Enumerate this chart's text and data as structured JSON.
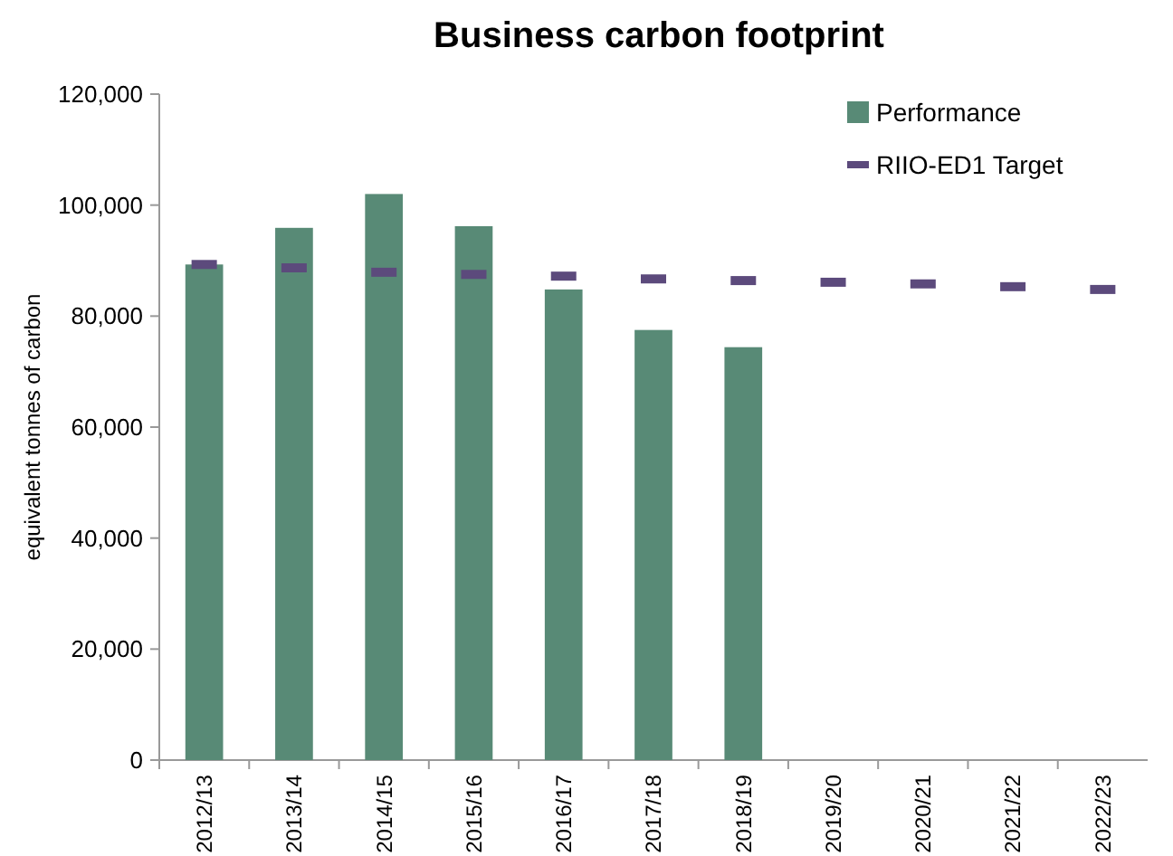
{
  "chart_data": {
    "type": "bar",
    "title": "Business carbon footprint",
    "ylabel": "equivalent tonnes of carbon",
    "categories": [
      "2012/13",
      "2013/14",
      "2014/15",
      "2015/16",
      "2016/17",
      "2017/18",
      "2018/19",
      "2019/20",
      "2020/21",
      "2021/22",
      "2022/23"
    ],
    "series": [
      {
        "name": "Performance",
        "color": "#588a76",
        "values": [
          89300,
          95900,
          102000,
          96200,
          84800,
          77500,
          74400,
          null,
          null,
          null,
          null
        ]
      },
      {
        "name": "RIIO-ED1 Target",
        "type": "scatter",
        "color": "#5c4a7c",
        "x": [
          "2012/13",
          "2013/14",
          "2014/15",
          "2015/16",
          "2016/17",
          "2017/18",
          "2018/19",
          "2019/20",
          "2020/21",
          "2021/22",
          "2022/23"
        ],
        "values": [
          89300,
          88700,
          87900,
          87500,
          87200,
          86700,
          86400,
          86100,
          85800,
          85300,
          84800
        ]
      }
    ],
    "ylim": [
      0,
      120000
    ],
    "yticks": [
      {
        "value": 0,
        "label": "0"
      },
      {
        "value": 20000,
        "label": "20,000"
      },
      {
        "value": 40000,
        "label": "40,000"
      },
      {
        "value": 60000,
        "label": "60,000"
      },
      {
        "value": 80000,
        "label": "80,000"
      },
      {
        "value": 100000,
        "label": "100,000"
      },
      {
        "value": 120000,
        "label": "120,000"
      }
    ],
    "grid": false,
    "legend": "top right"
  }
}
